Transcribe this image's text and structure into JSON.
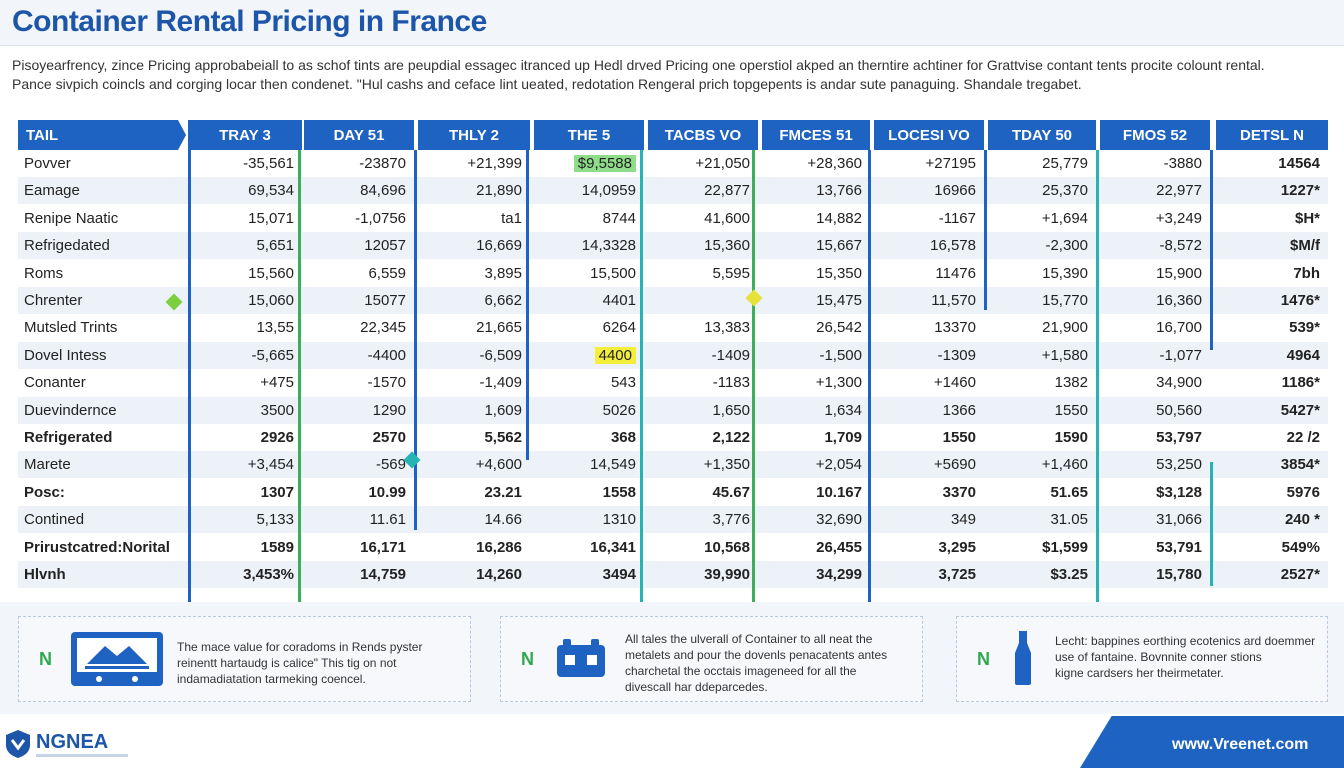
{
  "title": "Container Rental Pricing in France",
  "intro": [
    "Pisoyearfrency, zince Pricing approbabeiall to as schof tints are peupdial essagec itranced up Hedl drved Pricing one operstiol akped an therntire achtiner for Grattvise contant tents procite colount rental.",
    "Pance sivpich coincls and corging locar then condenet. \"Hul cashs and ceface lint ueated, redotation Rengeral prich topgepents is andar sute panaguing. Shandale tregabet."
  ],
  "table": {
    "headers": [
      "TAIL",
      "TRAY 3",
      "DAY 51",
      "THLY 2",
      "THE 5",
      "TACBS VO",
      "FMCES 51",
      "LOCESI VO",
      "TDAY 50",
      "FMOS 52",
      "DETSL N"
    ],
    "rows": [
      {
        "label": "Povver",
        "values": [
          "-35,561",
          "-23870",
          "+21,399",
          "$9,5588",
          "+21,050",
          "+28,360",
          "+27195",
          "25,779",
          "-3880",
          "14564"
        ]
      },
      {
        "label": "Eamage",
        "values": [
          "69,534",
          "84,696",
          "21,890",
          "14,0959",
          "22,877",
          "13,766",
          "16966",
          "25,370",
          "22,977",
          "1227*"
        ]
      },
      {
        "label": "Renipe Naatic",
        "values": [
          "15,071",
          "-1,0756",
          "ta1",
          "8744",
          "41,600",
          "14,882",
          "-1167",
          "+1,694",
          "+3,249",
          "$H*"
        ]
      },
      {
        "label": "Refrigedated",
        "values": [
          "5,651",
          "12057",
          "16,669",
          "14,3328",
          "15,360",
          "15,667",
          "16,578",
          "-2,300",
          "-8,572",
          "$M/f"
        ]
      },
      {
        "label": "Roms",
        "values": [
          "15,560",
          "6,559",
          "3,895",
          "15,500",
          "5,595",
          "15,350",
          "11476",
          "15,390",
          "15,900",
          "7bh"
        ]
      },
      {
        "label": "Chrenter",
        "values": [
          "15,060",
          "15077",
          "6,662",
          "4401",
          "",
          "15,475",
          "11,570",
          "15,770",
          "16,360",
          "1476*"
        ]
      },
      {
        "label": "Mutsled Trints",
        "values": [
          "13,55",
          "22,345",
          "21,665",
          "6264",
          "13,383",
          "26,542",
          "13370",
          "21,900",
          "16,700",
          "539*"
        ]
      },
      {
        "label": "Dovel Intess",
        "values": [
          "-5,665",
          "-4400",
          "-6,509",
          "4400",
          "-1409",
          "-1,500",
          "-1309",
          "+1,580",
          "-1,077",
          "4964"
        ]
      },
      {
        "label": "Conanter",
        "values": [
          "+475",
          "-1570",
          "-1,409",
          "543",
          "-1183",
          "+1,300",
          "+1460",
          "1382",
          "34,900",
          "1186*"
        ]
      },
      {
        "label": "Duevindernce",
        "values": [
          "3500",
          "1290",
          "1,609",
          "5026",
          "1,650",
          "1,634",
          "1366",
          "1550",
          "50,560",
          "5427*"
        ]
      },
      {
        "label": "Refrigerated",
        "values": [
          "2926",
          "2570",
          "5,562",
          "368",
          "2,122",
          "1,709",
          "1550",
          "1590",
          "53,797",
          "22 /2"
        ]
      },
      {
        "label": "Marete",
        "values": [
          "+3,454",
          "-569",
          "+4,600",
          "14,549",
          "+1,350",
          "+2,054",
          "+5690",
          "+1,460",
          "53,250",
          "3854*"
        ]
      },
      {
        "label": "Posc:",
        "values": [
          "1307",
          "10.99",
          "23.21",
          "1558",
          "45.67",
          "10.167",
          "3370",
          "51.65",
          "$3,128",
          "5976"
        ]
      },
      {
        "label": "Contined",
        "values": [
          "5,133",
          "11.61",
          "14.66",
          "1310",
          "3,776",
          "32,690",
          "349",
          "31.05",
          "31,066",
          "240 *"
        ]
      },
      {
        "label": "Prirustcatred:Norital",
        "values": [
          "1589",
          "16,171",
          "16,286",
          "16,341",
          "10,568",
          "26,455",
          "3,295",
          "$1,599",
          "53,791",
          "549%"
        ]
      },
      {
        "label": "Hlvnh",
        "values": [
          "3,453%",
          "14,759",
          "14,260",
          "3494",
          "39,990",
          "34,299",
          "3,725",
          "$3.25",
          "15,780",
          "2527*"
        ]
      }
    ]
  },
  "cards": [
    {
      "badge": "N",
      "icon": "monitor-icon",
      "lines": [
        "The mace value for coradoms in Rends pyster",
        "reinentt hartaudg is calice\"  This tig on not",
        "indamadiatation tarmeking coencel."
      ]
    },
    {
      "badge": "N",
      "icon": "container-icon",
      "lines": [
        "All tales the ulverall of Container to all neat the",
        "metalets and pour the dovenls penacatents antes",
        "charchetal the occtais imageneed for all the",
        "divescall har ddeparcedes."
      ]
    },
    {
      "badge": "N",
      "icon": "bottle-icon",
      "lines": [
        "Lecht: bappines eorthing ecotenics ard doemmer",
        "use of fantaine. Bovnnite conner stions",
        "kigne cardsers her theirmetater."
      ]
    }
  ],
  "footer": {
    "logo": "NGNEA",
    "url": "www.Vreenet.com"
  },
  "colors": {
    "header_blue": "#1f63c2",
    "title_blue": "#1d56a8",
    "accent_green": "#2fa84f",
    "highlight_green": "#8fdc8a",
    "highlight_yellow": "#f3ef3b"
  }
}
